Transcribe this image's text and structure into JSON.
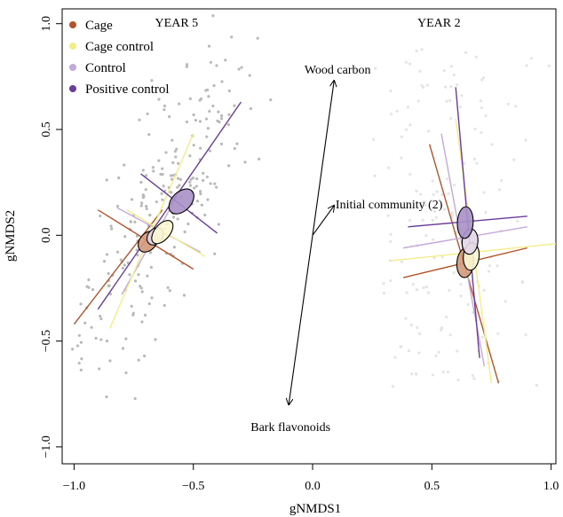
{
  "chart_data": {
    "type": "scatter",
    "xlabel": "gNMDS1",
    "ylabel": "gNMDS2",
    "xlim": [
      -1.05,
      1.02
    ],
    "ylim": [
      -1.08,
      1.07
    ],
    "xticks": [
      -1.0,
      -0.5,
      0.0,
      0.5,
      1.0
    ],
    "yticks": [
      -1.0,
      -0.5,
      0.0,
      0.5,
      1.0
    ],
    "xtick_labels": [
      "−1.0",
      "−0.5",
      "0.0",
      "0.5",
      "1.0"
    ],
    "ytick_labels": [
      "−1.0",
      "−0.5",
      "0.0",
      "0.5",
      "1.0"
    ],
    "panel_labels": [
      {
        "text": "YEAR 5",
        "x": -0.6,
        "y": 1.02
      },
      {
        "text": "YEAR 2",
        "x": 0.5,
        "y": 1.02
      }
    ],
    "legend": {
      "placement": "top-left",
      "entries": [
        {
          "label": "Cage",
          "color": "#b5532a"
        },
        {
          "label": "Cage control",
          "color": "#f2ee8a"
        },
        {
          "label": "Control",
          "color": "#c5a9d9"
        },
        {
          "label": "Positive control",
          "color": "#6a3d9a"
        }
      ]
    },
    "vectors": [
      {
        "label": "Wood carbon",
        "x": 0.09,
        "y": 0.73
      },
      {
        "label": "Initial community (2)",
        "x": 0.09,
        "y": 0.14
      },
      {
        "label": "Bark flavonoids",
        "x": -0.1,
        "y": -0.8
      }
    ],
    "groups": [
      {
        "name": "Cage",
        "year": 5,
        "color": "#b5532a",
        "fill": "#d49a7a",
        "center": [
          -0.69,
          -0.03
        ],
        "rx": 0.035,
        "ry": 0.055,
        "angle": 40,
        "lines": [
          [
            -1.0,
            -0.42,
            -0.63,
            0.12
          ],
          [
            -0.9,
            0.12,
            -0.5,
            -0.16
          ]
        ]
      },
      {
        "name": "Control",
        "year": 5,
        "color": "#c5a9d9",
        "fill": "#e2d7e8",
        "center": [
          -0.66,
          -0.005
        ],
        "rx": 0.03,
        "ry": 0.045,
        "angle": 40,
        "lines": [
          [
            -0.82,
            0.13,
            -0.47,
            -0.08
          ],
          [
            -0.8,
            -0.28,
            -0.57,
            0.18
          ]
        ]
      },
      {
        "name": "Cage control",
        "year": 5,
        "color": "#f2ee8a",
        "fill": "#fbf7d2",
        "center": [
          -0.63,
          0.015
        ],
        "rx": 0.032,
        "ry": 0.065,
        "angle": 40,
        "lines": [
          [
            -0.85,
            -0.44,
            -0.5,
            0.48
          ],
          [
            -0.78,
            0.12,
            -0.45,
            -0.1
          ]
        ]
      },
      {
        "name": "Positive control",
        "year": 5,
        "color": "#6a3d9a",
        "fill": "#a990c8",
        "center": [
          -0.55,
          0.16
        ],
        "rx": 0.04,
        "ry": 0.07,
        "angle": 45,
        "lines": [
          [
            -0.9,
            -0.35,
            -0.3,
            0.63
          ],
          [
            -0.72,
            0.29,
            -0.4,
            0.01
          ]
        ]
      },
      {
        "name": "Cage",
        "year": 2,
        "color": "#b5532a",
        "fill": "#d49a7a",
        "center": [
          0.64,
          -0.13
        ],
        "rx": 0.035,
        "ry": 0.07,
        "angle": 5,
        "lines": [
          [
            0.49,
            0.43,
            0.78,
            -0.7
          ],
          [
            0.38,
            -0.2,
            0.9,
            -0.06
          ]
        ]
      },
      {
        "name": "Cage control",
        "year": 2,
        "color": "#f2ee8a",
        "fill": "#fbf7d2",
        "center": [
          0.665,
          -0.1
        ],
        "rx": 0.033,
        "ry": 0.065,
        "angle": 5,
        "lines": [
          [
            0.6,
            0.55,
            0.75,
            -0.7
          ],
          [
            0.33,
            -0.12,
            1.02,
            -0.04
          ]
        ]
      },
      {
        "name": "Control",
        "year": 2,
        "color": "#c5a9d9",
        "fill": "#e2d7e8",
        "center": [
          0.66,
          -0.03
        ],
        "rx": 0.033,
        "ry": 0.06,
        "angle": 5,
        "lines": [
          [
            0.54,
            0.48,
            0.72,
            -0.62
          ],
          [
            0.38,
            -0.06,
            0.9,
            0.04
          ]
        ]
      },
      {
        "name": "Positive control",
        "year": 2,
        "color": "#6a3d9a",
        "fill": "#a990c8",
        "center": [
          0.64,
          0.06
        ],
        "rx": 0.033,
        "ry": 0.075,
        "angle": 3,
        "lines": [
          [
            0.6,
            0.7,
            0.7,
            -0.58
          ],
          [
            0.4,
            0.04,
            0.9,
            0.09
          ]
        ]
      }
    ]
  }
}
